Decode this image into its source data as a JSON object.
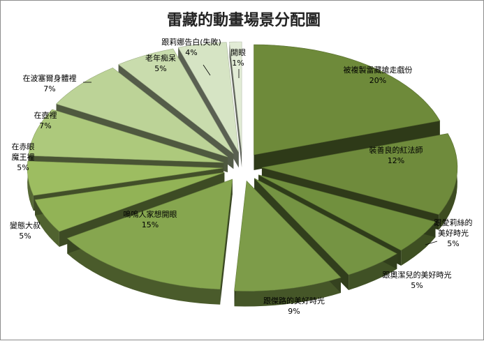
{
  "chart_data": {
    "type": "pie",
    "style": "exploded-3d",
    "title": "雷藏的動畫場景分配圖",
    "slices": [
      {
        "label": "被複製雷藏搶走戲份",
        "value": 20,
        "display": "20%",
        "color": "#6e8a3a"
      },
      {
        "label": "裝善良的紅法師",
        "value": 12,
        "display": "12%",
        "color": "#6f8b3c"
      },
      {
        "label": "跟愛莉絲的美好時光",
        "value": 5,
        "display": "5%",
        "color": "#71903e"
      },
      {
        "label": "跟奧潔兒的美好時光",
        "value": 5,
        "display": "5%",
        "color": "#759443"
      },
      {
        "label": "跟傑路的美好時光",
        "value": 9,
        "display": "9%",
        "color": "#7d9c49"
      },
      {
        "label": "嗚嗚人家想開眼",
        "value": 15,
        "display": "15%",
        "color": "#86a64f"
      },
      {
        "label": "變態大叔",
        "value": 5,
        "display": "5%",
        "color": "#92b356"
      },
      {
        "label": "在赤眼魔王裡",
        "value": 5,
        "display": "5%",
        "color": "#9dbd61"
      },
      {
        "label": "在壺裡",
        "value": 7,
        "display": "7%",
        "color": "#adc97c"
      },
      {
        "label": "在波塞爾身體裡",
        "value": 7,
        "display": "7%",
        "color": "#bcd397"
      },
      {
        "label": "老年痴呆",
        "value": 5,
        "display": "5%",
        "color": "#c9dcad"
      },
      {
        "label": "跟莉娜告白(失敗)",
        "value": 4,
        "display": "4%",
        "color": "#d6e4c4"
      },
      {
        "label": "開眼",
        "value": 1,
        "display": "1%",
        "color": "#e2ecd6"
      }
    ],
    "legend": "none"
  }
}
